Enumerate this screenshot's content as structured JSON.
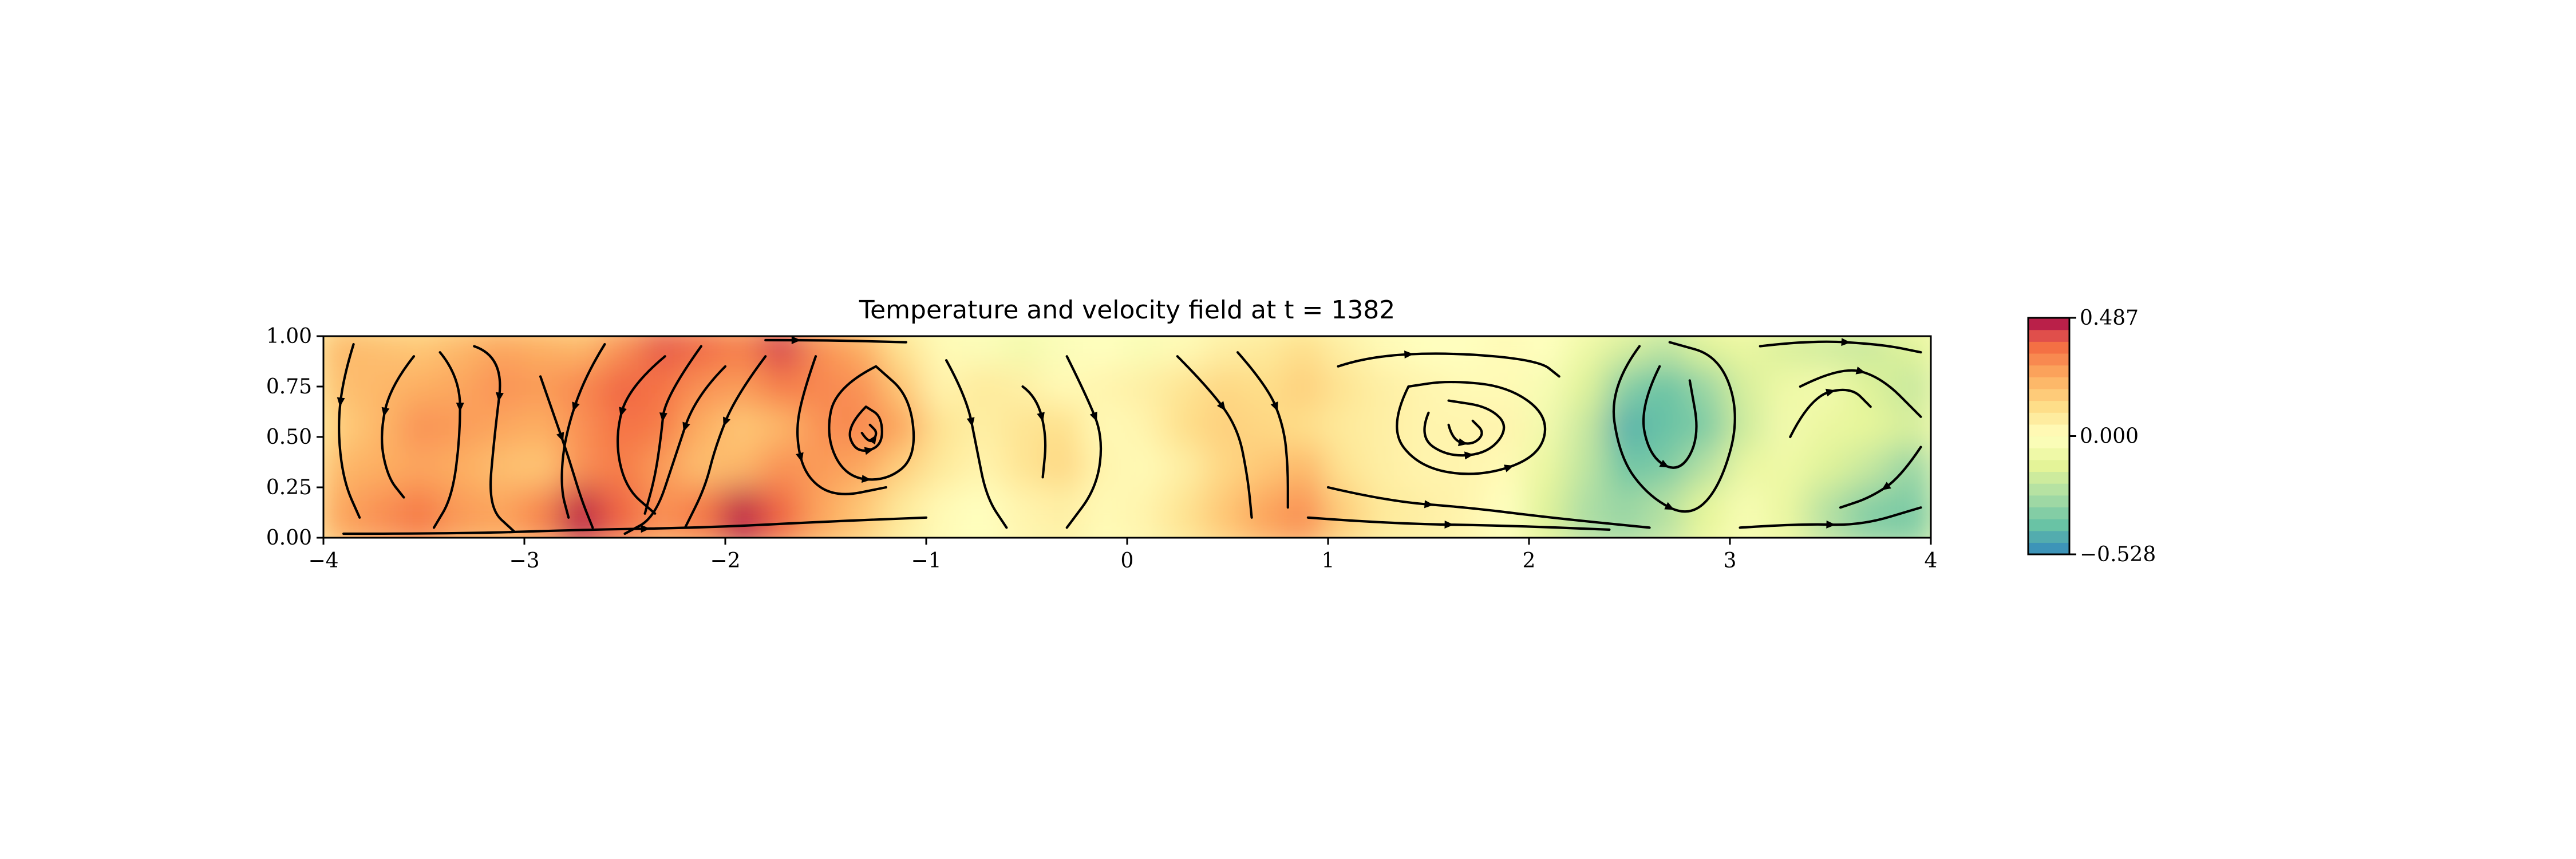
{
  "chart_data": {
    "type": "heatmap",
    "title": "Temperature and velocity field at t = 1382",
    "xlabel": "",
    "ylabel": "",
    "xlim": [
      -4,
      4
    ],
    "ylim": [
      0,
      1
    ],
    "x_ticks": [
      "−4",
      "−3",
      "−2",
      "−1",
      "0",
      "1",
      "2",
      "3",
      "4"
    ],
    "y_ticks": [
      "0.00",
      "0.25",
      "0.50",
      "0.75",
      "1.00"
    ],
    "colorbar": {
      "colormap": "Spectral_r",
      "min": -0.528,
      "max": 0.487,
      "tick_labels": [
        "0.487",
        "0.000",
        "−0.528"
      ]
    },
    "temperature_grid": {
      "x": [
        -3.9,
        -3.7,
        -3.5,
        -3.3,
        -3.1,
        -2.9,
        -2.7,
        -2.5,
        -2.3,
        -2.1,
        -1.9,
        -1.7,
        -1.5,
        -1.3,
        -1.1,
        -0.9,
        -0.7,
        -0.5,
        -0.3,
        -0.1,
        0.1,
        0.3,
        0.5,
        0.7,
        0.9,
        1.1,
        1.3,
        1.5,
        1.7,
        1.9,
        2.1,
        2.3,
        2.5,
        2.7,
        2.9,
        3.1,
        3.3,
        3.5,
        3.7,
        3.9
      ],
      "y": [
        0.9,
        0.7,
        0.5,
        0.3,
        0.1
      ],
      "values": [
        [
          0.22,
          0.2,
          0.18,
          0.22,
          0.26,
          0.24,
          0.22,
          0.3,
          0.4,
          0.38,
          0.34,
          0.44,
          0.3,
          0.24,
          0.1,
          0.02,
          -0.02,
          -0.06,
          -0.02,
          0.0,
          -0.03,
          0.02,
          0.06,
          0.08,
          0.12,
          0.06,
          0.02,
          0.0,
          0.0,
          0.02,
          0.0,
          -0.08,
          -0.16,
          -0.22,
          -0.14,
          -0.1,
          -0.16,
          -0.18,
          -0.2,
          -0.14
        ],
        [
          0.2,
          0.22,
          0.24,
          0.26,
          0.3,
          0.28,
          0.32,
          0.38,
          0.36,
          0.3,
          0.28,
          0.34,
          0.32,
          0.3,
          0.18,
          0.04,
          0.08,
          0.06,
          0.02,
          0.04,
          0.06,
          0.1,
          0.14,
          0.12,
          0.16,
          0.1,
          0.06,
          0.04,
          0.02,
          0.02,
          -0.04,
          -0.14,
          -0.34,
          -0.4,
          -0.3,
          -0.16,
          -0.08,
          -0.06,
          -0.14,
          -0.2
        ],
        [
          0.16,
          0.22,
          0.3,
          0.28,
          0.26,
          0.24,
          0.3,
          0.36,
          0.34,
          0.24,
          0.18,
          0.22,
          0.3,
          0.32,
          0.26,
          0.1,
          0.06,
          0.1,
          0.12,
          0.02,
          0.04,
          0.12,
          0.16,
          0.14,
          0.12,
          0.08,
          0.06,
          0.04,
          0.04,
          0.04,
          -0.06,
          -0.2,
          -0.44,
          -0.4,
          -0.36,
          -0.18,
          -0.06,
          -0.1,
          -0.12,
          -0.16
        ],
        [
          0.22,
          0.24,
          0.26,
          0.24,
          0.2,
          0.18,
          0.3,
          0.34,
          0.28,
          0.2,
          0.22,
          0.3,
          0.28,
          0.26,
          0.16,
          0.08,
          0.04,
          0.1,
          0.14,
          0.04,
          0.02,
          0.06,
          0.14,
          0.18,
          0.22,
          0.1,
          0.06,
          0.04,
          0.04,
          0.02,
          -0.1,
          -0.22,
          -0.38,
          -0.36,
          -0.24,
          -0.1,
          -0.08,
          -0.14,
          -0.2,
          -0.3
        ],
        [
          0.26,
          0.3,
          0.34,
          0.28,
          0.26,
          0.32,
          0.46,
          0.38,
          0.3,
          0.34,
          0.46,
          0.38,
          0.26,
          0.18,
          0.08,
          0.02,
          0.0,
          0.04,
          0.06,
          0.02,
          0.04,
          0.1,
          0.18,
          0.26,
          0.3,
          0.16,
          0.08,
          0.06,
          0.04,
          0.0,
          -0.14,
          -0.26,
          -0.3,
          -0.24,
          -0.12,
          -0.04,
          -0.1,
          -0.24,
          -0.34,
          -0.36
        ]
      ]
    },
    "streamlines": {
      "description_units": "data units (x, y)",
      "paths": [
        [
          [
            -3.85,
            0.96
          ],
          [
            -3.9,
            0.8
          ],
          [
            -3.93,
            0.55
          ],
          [
            -3.9,
            0.28
          ],
          [
            -3.82,
            0.1
          ]
        ],
        [
          [
            -3.55,
            0.9
          ],
          [
            -3.67,
            0.75
          ],
          [
            -3.72,
            0.5
          ],
          [
            -3.68,
            0.3
          ],
          [
            -3.6,
            0.2
          ]
        ],
        [
          [
            -3.42,
            0.92
          ],
          [
            -3.32,
            0.8
          ],
          [
            -3.32,
            0.5
          ],
          [
            -3.36,
            0.2
          ],
          [
            -3.45,
            0.05
          ]
        ],
        [
          [
            -3.25,
            0.95
          ],
          [
            -3.1,
            0.9
          ],
          [
            -3.15,
            0.5
          ],
          [
            -3.18,
            0.15
          ],
          [
            -3.05,
            0.03
          ]
        ],
        [
          [
            -2.92,
            0.8
          ],
          [
            -2.85,
            0.6
          ],
          [
            -2.78,
            0.4
          ],
          [
            -2.72,
            0.2
          ],
          [
            -2.66,
            0.05
          ]
        ],
        [
          [
            -2.6,
            0.96
          ],
          [
            -2.7,
            0.8
          ],
          [
            -2.8,
            0.5
          ],
          [
            -2.82,
            0.25
          ],
          [
            -2.78,
            0.1
          ]
        ],
        [
          [
            -2.3,
            0.9
          ],
          [
            -2.48,
            0.75
          ],
          [
            -2.55,
            0.5
          ],
          [
            -2.5,
            0.25
          ],
          [
            -2.35,
            0.12
          ]
        ],
        [
          [
            -2.12,
            0.95
          ],
          [
            -2.3,
            0.7
          ],
          [
            -2.32,
            0.5
          ],
          [
            -2.35,
            0.3
          ],
          [
            -2.4,
            0.12
          ]
        ],
        [
          [
            -2.0,
            0.85
          ],
          [
            -2.15,
            0.7
          ],
          [
            -2.25,
            0.4
          ],
          [
            -2.35,
            0.1
          ],
          [
            -2.5,
            0.02
          ]
        ],
        [
          [
            -1.8,
            0.9
          ],
          [
            -1.95,
            0.7
          ],
          [
            -2.05,
            0.45
          ],
          [
            -2.1,
            0.25
          ],
          [
            -2.2,
            0.05
          ]
        ],
        [
          [
            -1.55,
            0.9
          ],
          [
            -1.62,
            0.7
          ],
          [
            -1.65,
            0.5
          ],
          [
            -1.6,
            0.3
          ],
          [
            -1.45,
            0.2
          ],
          [
            -1.2,
            0.25
          ]
        ],
        [
          [
            -1.25,
            0.85
          ],
          [
            -1.45,
            0.75
          ],
          [
            -1.5,
            0.5
          ],
          [
            -1.4,
            0.3
          ],
          [
            -1.2,
            0.28
          ],
          [
            -1.05,
            0.4
          ],
          [
            -1.08,
            0.7
          ],
          [
            -1.25,
            0.85
          ]
        ],
        [
          [
            -1.3,
            0.65
          ],
          [
            -1.4,
            0.55
          ],
          [
            -1.35,
            0.42
          ],
          [
            -1.22,
            0.45
          ],
          [
            -1.22,
            0.6
          ],
          [
            -1.3,
            0.65
          ]
        ],
        [
          [
            -1.32,
            0.52
          ],
          [
            -1.28,
            0.46
          ],
          [
            -1.24,
            0.52
          ],
          [
            -1.28,
            0.56
          ]
        ],
        [
          [
            -0.9,
            0.88
          ],
          [
            -0.8,
            0.7
          ],
          [
            -0.75,
            0.45
          ],
          [
            -0.7,
            0.2
          ],
          [
            -0.6,
            0.05
          ]
        ],
        [
          [
            -0.52,
            0.75
          ],
          [
            -0.45,
            0.7
          ],
          [
            -0.4,
            0.5
          ],
          [
            -0.42,
            0.3
          ]
        ],
        [
          [
            -0.3,
            0.9
          ],
          [
            -0.2,
            0.7
          ],
          [
            -0.12,
            0.5
          ],
          [
            -0.15,
            0.25
          ],
          [
            -0.3,
            0.05
          ]
        ],
        [
          [
            0.25,
            0.9
          ],
          [
            0.4,
            0.75
          ],
          [
            0.55,
            0.55
          ],
          [
            0.6,
            0.3
          ],
          [
            0.62,
            0.1
          ]
        ],
        [
          [
            0.55,
            0.92
          ],
          [
            0.7,
            0.75
          ],
          [
            0.78,
            0.55
          ],
          [
            0.8,
            0.35
          ],
          [
            0.8,
            0.15
          ]
        ],
        [
          [
            1.05,
            0.85
          ],
          [
            1.2,
            0.9
          ],
          [
            1.6,
            0.92
          ],
          [
            2.05,
            0.88
          ],
          [
            2.15,
            0.8
          ]
        ],
        [
          [
            1.4,
            0.75
          ],
          [
            1.3,
            0.55
          ],
          [
            1.45,
            0.35
          ],
          [
            1.75,
            0.3
          ],
          [
            2.05,
            0.4
          ],
          [
            2.1,
            0.6
          ],
          [
            1.9,
            0.75
          ],
          [
            1.6,
            0.78
          ],
          [
            1.4,
            0.75
          ]
        ],
        [
          [
            1.5,
            0.62
          ],
          [
            1.45,
            0.5
          ],
          [
            1.6,
            0.4
          ],
          [
            1.8,
            0.42
          ],
          [
            1.9,
            0.55
          ],
          [
            1.8,
            0.65
          ],
          [
            1.6,
            0.68
          ]
        ],
        [
          [
            1.6,
            0.56
          ],
          [
            1.62,
            0.48
          ],
          [
            1.72,
            0.46
          ],
          [
            1.78,
            0.52
          ],
          [
            1.72,
            0.58
          ]
        ],
        [
          [
            1.0,
            0.25
          ],
          [
            1.3,
            0.18
          ],
          [
            1.7,
            0.15
          ],
          [
            2.1,
            0.1
          ],
          [
            2.6,
            0.05
          ]
        ],
        [
          [
            0.9,
            0.1
          ],
          [
            1.3,
            0.07
          ],
          [
            1.9,
            0.06
          ],
          [
            2.4,
            0.04
          ]
        ],
        [
          [
            2.55,
            0.95
          ],
          [
            2.4,
            0.75
          ],
          [
            2.45,
            0.4
          ],
          [
            2.6,
            0.2
          ],
          [
            2.8,
            0.1
          ],
          [
            2.95,
            0.25
          ],
          [
            3.05,
            0.6
          ],
          [
            2.95,
            0.9
          ],
          [
            2.7,
            0.97
          ]
        ],
        [
          [
            2.65,
            0.85
          ],
          [
            2.55,
            0.65
          ],
          [
            2.6,
            0.4
          ],
          [
            2.75,
            0.32
          ],
          [
            2.85,
            0.5
          ],
          [
            2.8,
            0.78
          ]
        ],
        [
          [
            3.15,
            0.95
          ],
          [
            3.4,
            0.98
          ],
          [
            3.75,
            0.96
          ],
          [
            3.95,
            0.92
          ]
        ],
        [
          [
            3.35,
            0.75
          ],
          [
            3.55,
            0.85
          ],
          [
            3.75,
            0.8
          ],
          [
            3.95,
            0.6
          ]
        ],
        [
          [
            3.3,
            0.5
          ],
          [
            3.4,
            0.7
          ],
          [
            3.6,
            0.75
          ],
          [
            3.7,
            0.65
          ]
        ],
        [
          [
            3.95,
            0.45
          ],
          [
            3.85,
            0.3
          ],
          [
            3.7,
            0.2
          ],
          [
            3.55,
            0.15
          ]
        ],
        [
          [
            3.05,
            0.05
          ],
          [
            3.35,
            0.07
          ],
          [
            3.65,
            0.06
          ],
          [
            3.95,
            0.15
          ]
        ],
        [
          [
            -3.9,
            0.02
          ],
          [
            -3.3,
            0.02
          ],
          [
            -2.7,
            0.04
          ],
          [
            -2.1,
            0.05
          ],
          [
            -1.5,
            0.08
          ],
          [
            -1.0,
            0.1
          ]
        ],
        [
          [
            -1.8,
            0.98
          ],
          [
            -1.5,
            0.98
          ],
          [
            -1.1,
            0.97
          ]
        ]
      ]
    }
  }
}
